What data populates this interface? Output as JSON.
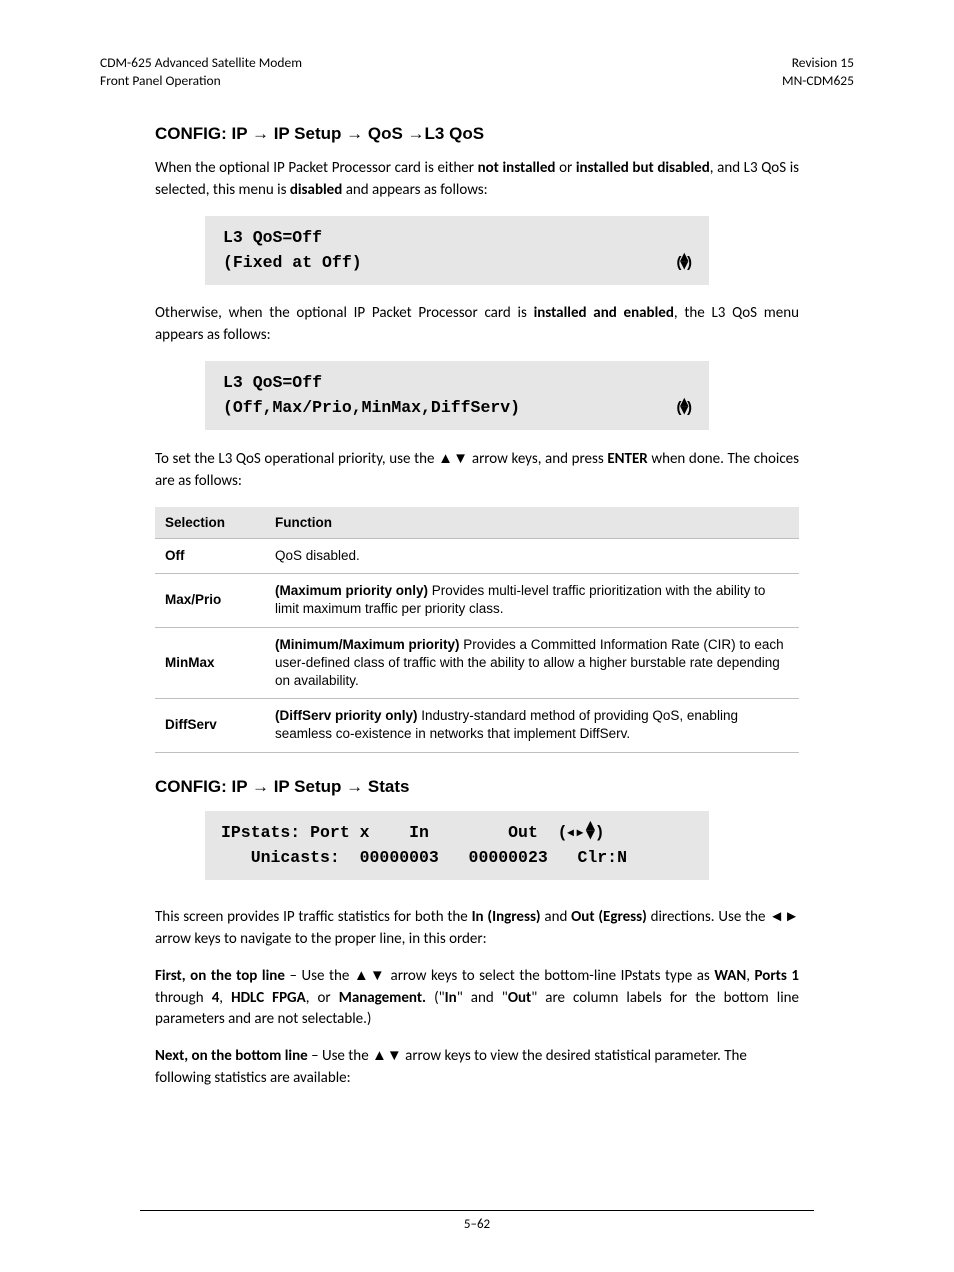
{
  "header": {
    "left1": "CDM-625 Advanced Satellite Modem",
    "left2": "Front Panel Operation",
    "right1": "Revision 15",
    "right2": "MN-CDM625"
  },
  "section1": {
    "title_parts": [
      "CONFIG: IP ",
      " IP Setup ",
      " QoS ",
      "L3 QoS"
    ],
    "p1_a": "When the optional IP Packet Processor card is either ",
    "p1_b": "not installed",
    "p1_c": " or ",
    "p1_d": "installed but disabled",
    "p1_e": ", and L3 QoS is selected, this menu is ",
    "p1_f": "disabled",
    "p1_g": " and appears as follows:",
    "lcd1_line1": "L3 QoS=Off",
    "lcd1_line2": "(Fixed at Off)",
    "p2_a": "Otherwise, when the optional IP Packet Processor card is ",
    "p2_b": "installed and enabled",
    "p2_c": ", the L3 QoS menu appears as follows:",
    "lcd2_line1": "L3 QoS=Off",
    "lcd2_line2": "(Off,Max/Prio,MinMax,DiffServ)",
    "p3_a": "To set the L3 QoS operational priority, use the ",
    "p3_b": " arrow keys, and press ",
    "p3_c": "ENTER",
    "p3_d": " when done. The choices are as follows:"
  },
  "table": {
    "col1": "Selection",
    "col2": "Function",
    "rows": [
      {
        "sel": "Off",
        "func_bold": "",
        "func_rest": "QoS disabled."
      },
      {
        "sel": "Max/Prio",
        "func_bold": "(Maximum priority only)",
        "func_rest": " Provides multi-level traffic prioritization with the ability to limit maximum traffic per priority class."
      },
      {
        "sel": "MinMax",
        "func_bold": "(Minimum/Maximum priority)",
        "func_rest": " Provides a Committed Information Rate (CIR) to each user-defined class of traffic with the ability to allow a higher burstable rate depending on availability."
      },
      {
        "sel": "DiffServ",
        "func_bold": "(DiffServ priority only)",
        "func_rest": " Industry-standard method of providing QoS, enabling seamless co-existence in networks that implement DiffServ."
      }
    ]
  },
  "section2": {
    "title_parts": [
      "CONFIG: IP ",
      " IP Setup ",
      " Stats"
    ],
    "lcd_line1_a": "IPstats: Port x    In        Out  (",
    "lcd_line1_b": ")",
    "lcd_line2": "   Unicasts:  00000003   00000023   Clr:N",
    "p1_a": "This screen provides IP traffic statistics for both the ",
    "p1_b": "In (Ingress)",
    "p1_c": " and ",
    "p1_d": "Out (Egress)",
    "p1_e": " directions. Use the ",
    "p1_f": " arrow keys to navigate to the proper line, in this order:",
    "p2_a": "First, on the top line",
    "p2_b": " – Use the ",
    "p2_c": " arrow keys to select the bottom-line IPstats type as ",
    "p2_d": "WAN",
    "p2_e": ", ",
    "p2_f": "Ports 1",
    "p2_g": " through ",
    "p2_h": "4",
    "p2_i": ", ",
    "p2_j": "HDLC FPGA",
    "p2_k": ", or ",
    "p2_l": "Management.",
    "p2_m": " (\"",
    "p2_n": "In",
    "p2_o": "\" and \"",
    "p2_p": "Out",
    "p2_q": "\" are column labels for the bottom line parameters and are not selectable.)",
    "p3_a": "Next, on the bottom line",
    "p3_b": " – Use the ",
    "p3_c": " arrow keys to view the desired statistical parameter. The following statistics are available:"
  },
  "footer": {
    "page": "5–62"
  },
  "glyphs": {
    "right_arrow": "→",
    "up": "▲",
    "down": "▼",
    "left": "◄",
    "right": "►",
    "updown_combo": "⇳",
    "lr": "◄►",
    "ud": "▲▼"
  }
}
